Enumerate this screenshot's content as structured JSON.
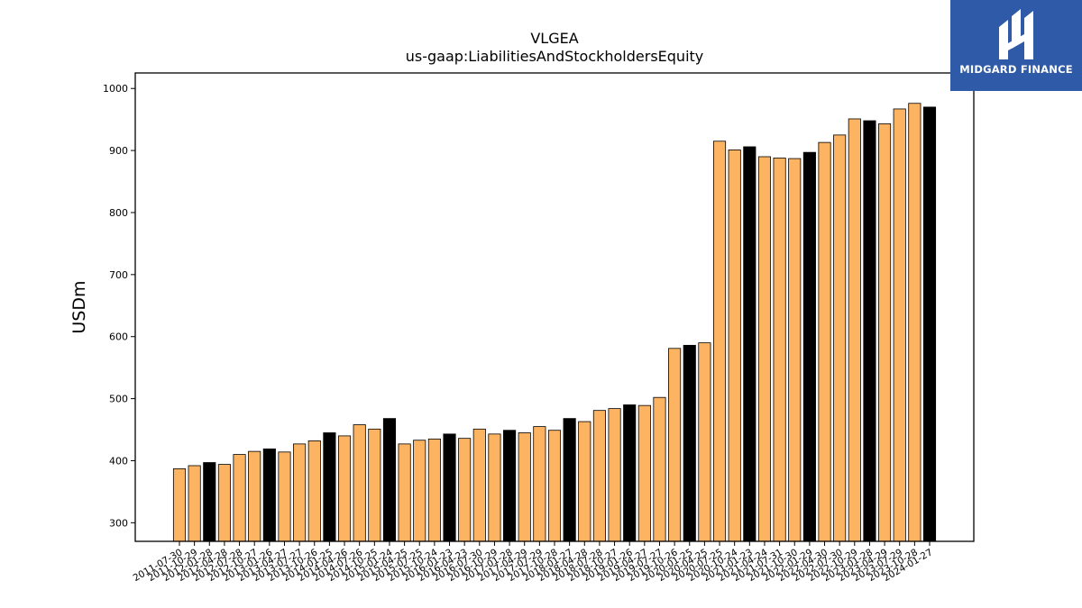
{
  "logo": {
    "text": "MIDGARD FINANCE",
    "icon": "midgard-logo-icon",
    "bg_color": "#2f5aa8"
  },
  "chart_data": {
    "type": "bar",
    "title": "VLGEA",
    "subtitle": "us-gaap:LiabilitiesAndStockholdersEquity",
    "ylabel": "USDm",
    "xlabel": "",
    "ylim": [
      270,
      1025
    ],
    "yticks": [
      300,
      400,
      500,
      600,
      700,
      800,
      900,
      1000
    ],
    "grid": false,
    "colors": {
      "regular": "#fdb462",
      "highlight": "#000000",
      "edge": "#000000"
    },
    "categories": [
      "2011-07-30",
      "2011-10-29",
      "2012-01-28",
      "2012-04-28",
      "2012-07-28",
      "2012-10-27",
      "2013-01-26",
      "2013-04-27",
      "2013-07-27",
      "2013-10-26",
      "2014-01-25",
      "2014-04-26",
      "2014-07-26",
      "2014-10-25",
      "2015-01-24",
      "2015-04-25",
      "2015-07-25",
      "2015-10-24",
      "2016-01-23",
      "2016-04-23",
      "2016-07-30",
      "2016-10-29",
      "2017-01-28",
      "2017-04-29",
      "2017-07-29",
      "2017-10-28",
      "2018-01-27",
      "2018-04-28",
      "2018-07-28",
      "2018-10-27",
      "2019-01-26",
      "2019-04-27",
      "2019-07-27",
      "2019-10-26",
      "2020-01-25",
      "2020-04-25",
      "2020-07-25",
      "2020-10-24",
      "2021-01-23",
      "2021-04-24",
      "2021-07-31",
      "2021-10-30",
      "2022-01-29",
      "2022-04-30",
      "2022-07-30",
      "2022-10-29",
      "2023-01-28",
      "2023-04-29",
      "2023-07-29",
      "2023-10-28",
      "2024-01-27"
    ],
    "values": [
      387,
      392,
      397,
      394,
      410,
      415,
      419,
      414,
      427,
      432,
      445,
      440,
      458,
      451,
      468,
      427,
      433,
      435,
      443,
      436,
      451,
      443,
      449,
      445,
      455,
      449,
      468,
      463,
      481,
      484,
      490,
      489,
      502,
      581,
      586,
      590,
      915,
      901,
      906,
      890,
      888,
      887,
      897,
      913,
      925,
      951,
      948,
      943,
      967,
      976,
      970
    ],
    "highlight": [
      false,
      false,
      true,
      false,
      false,
      false,
      true,
      false,
      false,
      false,
      true,
      false,
      false,
      false,
      true,
      false,
      false,
      false,
      true,
      false,
      false,
      false,
      true,
      false,
      false,
      false,
      true,
      false,
      false,
      false,
      true,
      false,
      false,
      false,
      true,
      false,
      false,
      false,
      true,
      false,
      false,
      false,
      true,
      false,
      false,
      false,
      true,
      false,
      false,
      false,
      true
    ]
  }
}
